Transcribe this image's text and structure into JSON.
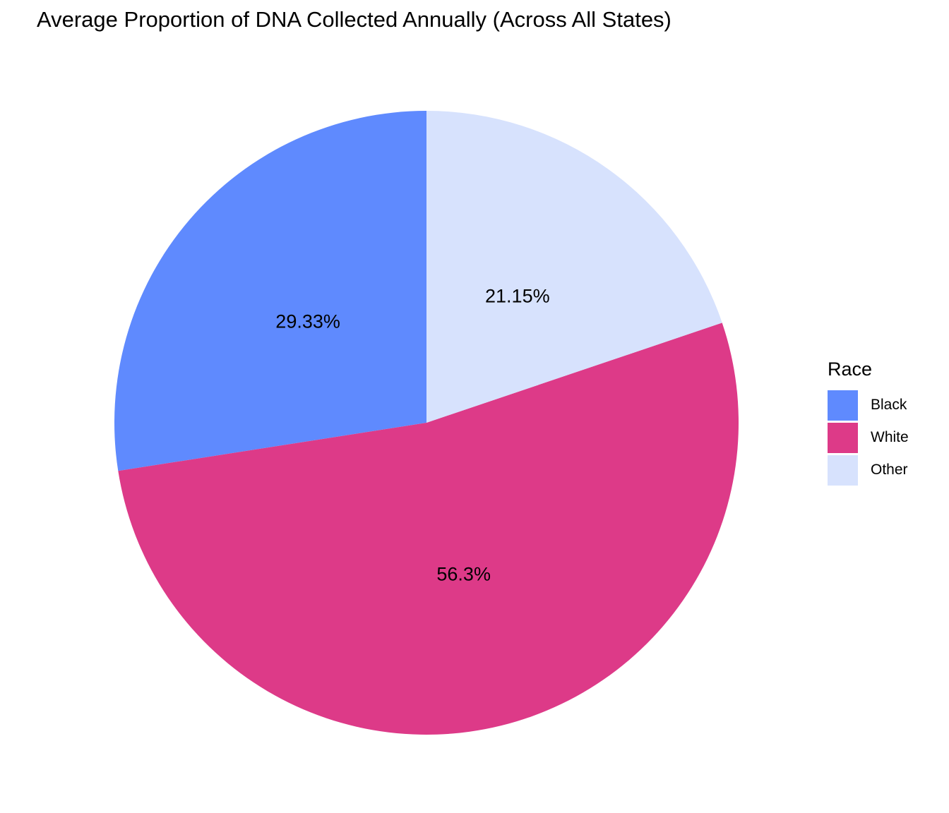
{
  "chart_data": {
    "type": "pie",
    "title": "Average Proportion of DNA Collected Annually (Across All States)",
    "legend_title": "Race",
    "legend_position": "right",
    "categories": [
      "Black",
      "White",
      "Other"
    ],
    "values": [
      29.33,
      56.3,
      21.15
    ],
    "labels": [
      "29.33%",
      "56.3%",
      "21.15%"
    ],
    "colors": [
      "#5f8afe",
      "#dd3a88",
      "#d7e2fd"
    ],
    "start": "12 o'clock",
    "direction": "counterclockwise"
  }
}
